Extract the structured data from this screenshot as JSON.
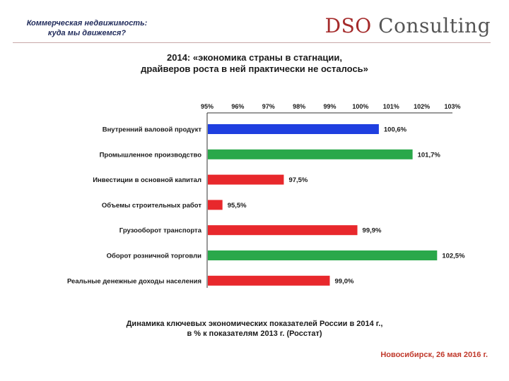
{
  "header": {
    "subtitle_line1": "Коммерческая недвижимость:",
    "subtitle_line2": "куда мы движемся?",
    "logo_part1": "DSO",
    "logo_part2": " Consulting"
  },
  "slide": {
    "title_line1": "2014: «экономика страны в стагнации,",
    "title_line2": "драйверов роста в ней практически не осталось»",
    "caption_line1": "Динамика ключевых экономических показателей России в 2014 г.,",
    "caption_line2": "в % к показателям 2013 г. (Росстат)",
    "footer": "Новосибирск, 26 мая 2016 г."
  },
  "colors": {
    "blue": "#1f3fe0",
    "green": "#2aa84a",
    "red": "#e8282c",
    "logo_accent": "#a42a2a"
  },
  "chart_data": {
    "type": "bar",
    "orientation": "horizontal",
    "xlim": [
      95,
      103
    ],
    "xticks": [
      "95%",
      "96%",
      "97%",
      "98%",
      "99%",
      "100%",
      "101%",
      "102%",
      "103%"
    ],
    "categories": [
      "Внутренний валовой продукт",
      "Промышленное производство",
      "Инвестиции в основной капитал",
      "Объемы строительных работ",
      "Грузооборот транспорта",
      "Оборот розничной торговли",
      "Реальные денежные доходы населения"
    ],
    "values": [
      100.6,
      101.7,
      97.5,
      95.5,
      99.9,
      102.5,
      99.0
    ],
    "value_labels": [
      "100,6%",
      "101,7%",
      "97,5%",
      "95,5%",
      "99,9%",
      "102,5%",
      "99,0%"
    ],
    "bar_colors": [
      "blue",
      "green",
      "red",
      "red",
      "red",
      "green",
      "red"
    ],
    "grid": false,
    "legend": "none"
  }
}
